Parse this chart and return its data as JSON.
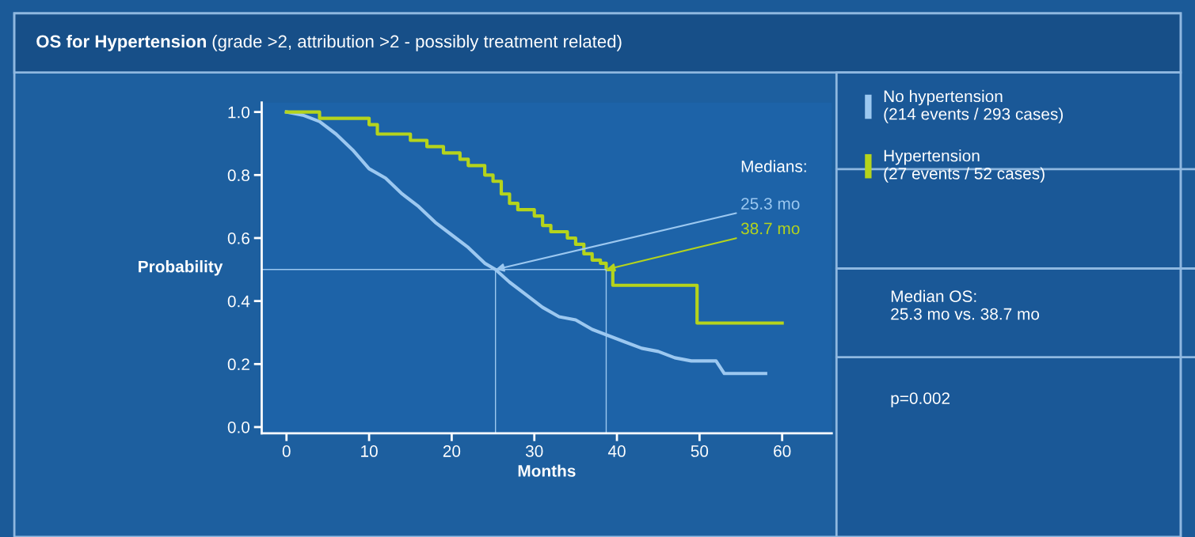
{
  "chart_data": {
    "type": "step",
    "title": "OS for Hypertension",
    "subtitle": "(grade >2, attribution >2 - possibly treatment related)",
    "xlabel": "Months",
    "ylabel": "Probability",
    "series": [
      {
        "name": "No hypertension\n(214 events / 293 cases)",
        "type": "line",
        "color": "#9cc8f0",
        "x": [
          0,
          2,
          4,
          6,
          8,
          10,
          12,
          14,
          16,
          18,
          20,
          22,
          24,
          25.3,
          27,
          29,
          31,
          33,
          35,
          37,
          39,
          41,
          43,
          45,
          47,
          49,
          52,
          53,
          58
        ],
        "values": [
          1.0,
          0.99,
          0.97,
          0.93,
          0.88,
          0.82,
          0.79,
          0.74,
          0.7,
          0.65,
          0.61,
          0.57,
          0.52,
          0.5,
          0.46,
          0.42,
          0.38,
          0.35,
          0.34,
          0.31,
          0.29,
          0.27,
          0.25,
          0.24,
          0.22,
          0.21,
          0.21,
          0.17,
          0.17
        ]
      },
      {
        "name": "Hypertension\n(27 events / 52 cases)",
        "color": "#b5d41c",
        "x": [
          0,
          4,
          10,
          11,
          15,
          17,
          19,
          21,
          22,
          24,
          25,
          26,
          27,
          28,
          30,
          31,
          32,
          34,
          35,
          36,
          37,
          38,
          38.7,
          39.5,
          49.7,
          60
        ],
        "values": [
          1.0,
          0.98,
          0.96,
          0.93,
          0.91,
          0.89,
          0.87,
          0.85,
          0.83,
          0.8,
          0.78,
          0.74,
          0.71,
          0.69,
          0.67,
          0.64,
          0.62,
          0.6,
          0.58,
          0.55,
          0.53,
          0.52,
          0.5,
          0.45,
          0.33,
          0.33
        ]
      }
    ],
    "xlim": [
      -3,
      66
    ],
    "ylim": [
      -0.02,
      1.03
    ],
    "xticks": [
      0,
      10,
      20,
      30,
      40,
      50,
      60
    ],
    "yticks": [
      {
        "value": 0,
        "label": "0.0"
      },
      {
        "value": 0.2,
        "label": "0.2"
      },
      {
        "value": 0.4,
        "label": "0.4"
      },
      {
        "value": 0.6,
        "label": "0.6"
      },
      {
        "value": 0.8,
        "label": "0.8"
      },
      {
        "value": 1,
        "label": "1.0"
      }
    ],
    "ref_lines": [
      {
        "axis": "y",
        "value": 0.5,
        "color": "#9cc8f0"
      },
      {
        "axis": "x",
        "value": 25.3,
        "color": "#9cc8f0"
      },
      {
        "axis": "x",
        "value": 38.7,
        "color": "#9cc8f0"
      }
    ],
    "annotations": [
      "Medians:",
      {
        "text": "25.3 mo",
        "x": 25.3,
        "y": 0.5
      },
      {
        "text": "38.7 mo",
        "x": 38.7,
        "y": 0.5
      },
      "Median OS:\n25.3 mo vs. 38.7 mo",
      "p=0.002"
    ],
    "legend": "right",
    "grid": false
  }
}
